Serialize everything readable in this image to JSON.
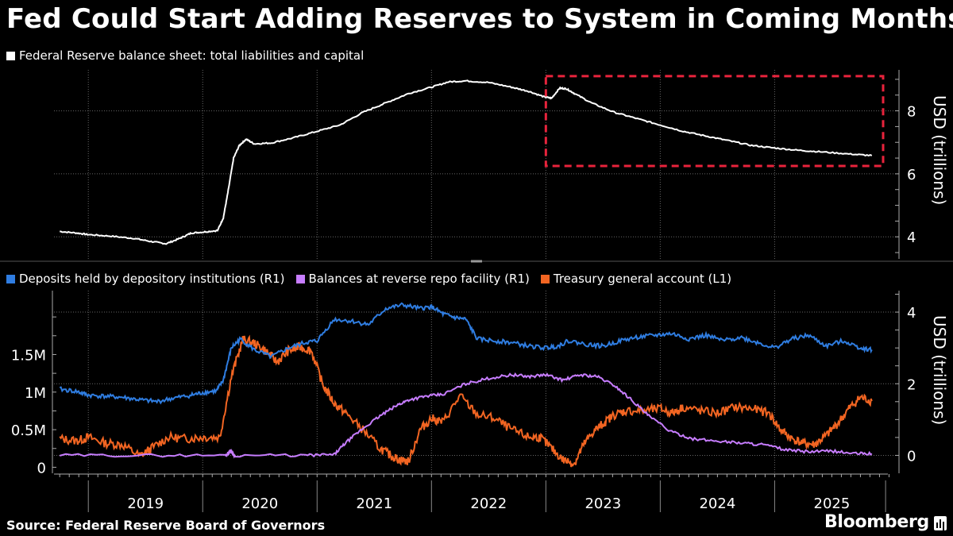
{
  "header": {
    "title": "Fed Could Start Adding Reserves to System in Coming Months"
  },
  "footer": {
    "source": "Source: Federal Reserve Board of Governors",
    "brand": "Bloomberg"
  },
  "colors": {
    "background": "#000000",
    "balance_sheet": "#ffffff",
    "deposits": "#2f7de1",
    "reverse_repo": "#c77dff",
    "tga": "#f26522",
    "highlight_box": "#e8233c",
    "grid": "#666666"
  },
  "chart_data": [
    {
      "type": "line",
      "name": "top-panel",
      "legend": "Federal Reserve balance sheet: total liabilities and capital",
      "ylabel": "USD (trillions)",
      "ylim": [
        3.3,
        9.3
      ],
      "yticks": [
        4,
        6,
        8
      ],
      "xlim": [
        2018.7,
        2025.99
      ],
      "series": [
        {
          "name": "Federal Reserve balance sheet: total liabilities and capital",
          "x": [
            2018.75,
            2018.9,
            2019.0,
            2019.2,
            2019.4,
            2019.55,
            2019.68,
            2019.8,
            2019.9,
            2020.0,
            2020.13,
            2020.18,
            2020.22,
            2020.27,
            2020.32,
            2020.38,
            2020.45,
            2020.6,
            2020.8,
            2021.0,
            2021.2,
            2021.4,
            2021.6,
            2021.8,
            2022.0,
            2022.15,
            2022.3,
            2022.5,
            2022.7,
            2022.85,
            2022.98,
            2023.05,
            2023.12,
            2023.18,
            2023.25,
            2023.4,
            2023.6,
            2023.8,
            2024.0,
            2024.2,
            2024.4,
            2024.6,
            2024.8,
            2025.0,
            2025.2,
            2025.4,
            2025.65,
            2025.85
          ],
          "values": [
            4.17,
            4.12,
            4.07,
            4.02,
            3.95,
            3.85,
            3.78,
            3.95,
            4.12,
            4.15,
            4.2,
            4.6,
            5.4,
            6.5,
            6.9,
            7.1,
            6.95,
            6.98,
            7.15,
            7.35,
            7.55,
            7.95,
            8.25,
            8.55,
            8.75,
            8.92,
            8.95,
            8.9,
            8.75,
            8.62,
            8.45,
            8.4,
            8.72,
            8.7,
            8.55,
            8.25,
            7.95,
            7.75,
            7.55,
            7.35,
            7.2,
            7.05,
            6.9,
            6.82,
            6.75,
            6.7,
            6.63,
            6.58
          ]
        }
      ],
      "annotations": [
        {
          "type": "highlight-box",
          "x_range": [
            2023.0,
            2025.99
          ],
          "y_range": [
            6.25,
            9.1
          ]
        }
      ]
    },
    {
      "type": "line",
      "name": "bottom-panel",
      "ylabel": "USD (trillions)",
      "ylim_left": [
        -0.08,
        2.35
      ],
      "yticks_left": [
        0,
        0.5,
        1,
        1.5
      ],
      "ytick_labels_left": [
        "0",
        "0.5M",
        "1M",
        "1.5M"
      ],
      "ylim_right": [
        -0.5,
        4.6
      ],
      "yticks_right": [
        0,
        2,
        4
      ],
      "x_categories": [
        "2019",
        "2020",
        "2021",
        "2022",
        "2023",
        "2024",
        "2025"
      ],
      "legend_placement": "top-left",
      "series": [
        {
          "name": "Deposits held by depository institutions (R1)",
          "axis": "right",
          "x": [
            2018.75,
            2018.9,
            2019.0,
            2019.15,
            2019.3,
            2019.45,
            2019.6,
            2019.75,
            2019.9,
            2020.0,
            2020.12,
            2020.18,
            2020.25,
            2020.33,
            2020.45,
            2020.6,
            2020.75,
            2020.9,
            2021.0,
            2021.15,
            2021.3,
            2021.45,
            2021.6,
            2021.75,
            2021.9,
            2022.0,
            2022.1,
            2022.2,
            2022.3,
            2022.4,
            2022.55,
            2022.7,
            2022.85,
            2023.0,
            2023.1,
            2023.2,
            2023.35,
            2023.5,
            2023.65,
            2023.8,
            2023.95,
            2024.1,
            2024.25,
            2024.4,
            2024.55,
            2024.7,
            2024.85,
            2025.0,
            2025.15,
            2025.3,
            2025.45,
            2025.6,
            2025.75,
            2025.85
          ],
          "values": [
            1.85,
            1.78,
            1.68,
            1.65,
            1.62,
            1.55,
            1.5,
            1.6,
            1.68,
            1.75,
            1.8,
            2.1,
            3.0,
            3.25,
            2.95,
            2.75,
            3.0,
            3.15,
            3.2,
            3.8,
            3.75,
            3.65,
            4.1,
            4.2,
            4.1,
            4.15,
            3.95,
            3.85,
            3.8,
            3.25,
            3.2,
            3.15,
            3.05,
            3.0,
            3.05,
            3.2,
            3.1,
            3.05,
            3.2,
            3.3,
            3.35,
            3.4,
            3.25,
            3.35,
            3.2,
            3.3,
            3.15,
            3.0,
            3.25,
            3.35,
            3.05,
            3.2,
            3.0,
            2.95
          ]
        },
        {
          "name": "Balances at reverse repo facility (R1)",
          "axis": "right",
          "x": [
            2018.75,
            2019.5,
            2020.2,
            2020.24,
            2020.28,
            2020.9,
            2021.15,
            2021.25,
            2021.4,
            2021.55,
            2021.7,
            2021.8,
            2021.95,
            2022.1,
            2022.3,
            2022.5,
            2022.7,
            2022.85,
            2023.0,
            2023.15,
            2023.3,
            2023.45,
            2023.6,
            2023.75,
            2023.9,
            2024.1,
            2024.3,
            2024.5,
            2024.7,
            2024.9,
            2025.1,
            2025.3,
            2025.5,
            2025.7,
            2025.85
          ],
          "values": [
            0.0,
            0.0,
            0.0,
            0.12,
            0.0,
            0.0,
            0.02,
            0.35,
            0.75,
            1.1,
            1.4,
            1.55,
            1.65,
            1.7,
            2.0,
            2.15,
            2.25,
            2.2,
            2.25,
            2.1,
            2.25,
            2.2,
            1.95,
            1.55,
            1.1,
            0.65,
            0.45,
            0.4,
            0.35,
            0.3,
            0.15,
            0.1,
            0.12,
            0.05,
            0.05
          ]
        },
        {
          "name": "Treasury general account  (L1)",
          "axis": "left",
          "x": [
            2018.75,
            2018.9,
            2019.0,
            2019.15,
            2019.3,
            2019.45,
            2019.55,
            2019.7,
            2019.85,
            2020.0,
            2020.15,
            2020.25,
            2020.35,
            2020.45,
            2020.55,
            2020.65,
            2020.75,
            2020.85,
            2020.95,
            2021.05,
            2021.15,
            2021.25,
            2021.4,
            2021.55,
            2021.65,
            2021.72,
            2021.8,
            2021.9,
            2022.0,
            2022.1,
            2022.25,
            2022.4,
            2022.55,
            2022.7,
            2022.85,
            2022.95,
            2023.05,
            2023.15,
            2023.25,
            2023.33,
            2023.42,
            2023.5,
            2023.6,
            2023.7,
            2023.85,
            2024.0,
            2024.1,
            2024.2,
            2024.35,
            2024.5,
            2024.65,
            2024.8,
            2024.95,
            2025.05,
            2025.15,
            2025.25,
            2025.35,
            2025.45,
            2025.55,
            2025.65,
            2025.75,
            2025.85
          ],
          "values": [
            0.38,
            0.35,
            0.4,
            0.32,
            0.3,
            0.15,
            0.25,
            0.4,
            0.38,
            0.4,
            0.4,
            1.2,
            1.7,
            1.65,
            1.55,
            1.4,
            1.55,
            1.6,
            1.55,
            1.1,
            0.85,
            0.72,
            0.5,
            0.25,
            0.15,
            0.1,
            0.08,
            0.5,
            0.65,
            0.6,
            0.95,
            0.7,
            0.65,
            0.5,
            0.4,
            0.4,
            0.25,
            0.1,
            0.05,
            0.3,
            0.48,
            0.58,
            0.7,
            0.75,
            0.75,
            0.78,
            0.72,
            0.8,
            0.75,
            0.72,
            0.8,
            0.78,
            0.72,
            0.5,
            0.38,
            0.32,
            0.3,
            0.42,
            0.58,
            0.78,
            0.93,
            0.88
          ]
        }
      ]
    }
  ]
}
